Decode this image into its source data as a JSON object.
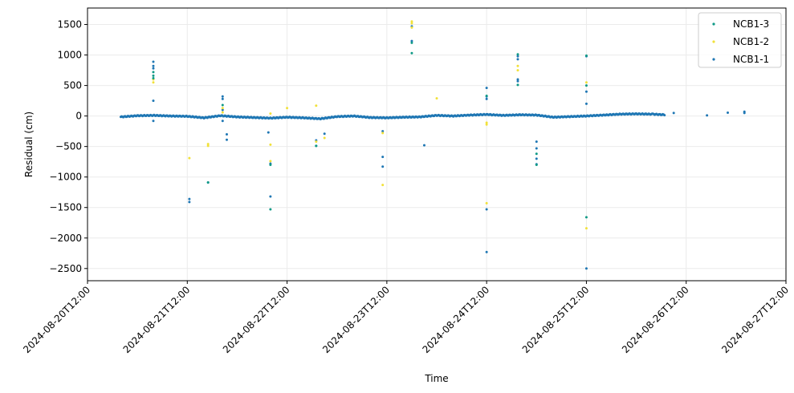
{
  "chart_data": {
    "type": "scatter",
    "title": "",
    "xlabel": "Time",
    "ylabel": "Residual (cm)",
    "x_range": [
      "2024-08-20T12:00",
      "2024-08-27T12:00"
    ],
    "ylim": [
      -2700,
      1770
    ],
    "x_ticks": [
      "2024-08-20T12:00",
      "2024-08-21T12:00",
      "2024-08-22T12:00",
      "2024-08-23T12:00",
      "2024-08-24T12:00",
      "2024-08-25T12:00",
      "2024-08-26T12:00",
      "2024-08-27T12:00"
    ],
    "y_ticks": [
      1500,
      1000,
      500,
      0,
      -500,
      -1000,
      -1500,
      -2000,
      -2500
    ],
    "grid": true,
    "legend_position": "top-right",
    "legend": [
      "NCB1-3",
      "NCB1-2",
      "NCB1-1"
    ],
    "series": [
      {
        "name": "NCB1-1",
        "color": "#1f77b4",
        "baseline": {
          "start": "2024-08-20T20:00",
          "end": "2024-08-26T07:00",
          "points": [
            [
              "2024-08-20T20:00",
              -15
            ],
            [
              "2024-08-21T00:00",
              5
            ],
            [
              "2024-08-21T04:00",
              10
            ],
            [
              "2024-08-21T08:00",
              0
            ],
            [
              "2024-08-21T12:00",
              -5
            ],
            [
              "2024-08-21T16:00",
              -30
            ],
            [
              "2024-08-21T20:00",
              5
            ],
            [
              "2024-08-22T00:00",
              -15
            ],
            [
              "2024-08-22T04:00",
              -25
            ],
            [
              "2024-08-22T08:00",
              -35
            ],
            [
              "2024-08-22T12:00",
              -20
            ],
            [
              "2024-08-22T16:00",
              -30
            ],
            [
              "2024-08-22T20:00",
              -45
            ],
            [
              "2024-08-23T00:00",
              -10
            ],
            [
              "2024-08-23T04:00",
              0
            ],
            [
              "2024-08-23T08:00",
              -25
            ],
            [
              "2024-08-23T12:00",
              -30
            ],
            [
              "2024-08-23T16:00",
              -20
            ],
            [
              "2024-08-23T20:00",
              -15
            ],
            [
              "2024-08-24T00:00",
              10
            ],
            [
              "2024-08-24T04:00",
              0
            ],
            [
              "2024-08-24T08:00",
              15
            ],
            [
              "2024-08-24T12:00",
              25
            ],
            [
              "2024-08-24T16:00",
              10
            ],
            [
              "2024-08-24T20:00",
              20
            ],
            [
              "2024-08-25T00:00",
              15
            ],
            [
              "2024-08-25T04:00",
              -20
            ],
            [
              "2024-08-25T08:00",
              -10
            ],
            [
              "2024-08-25T12:00",
              0
            ],
            [
              "2024-08-25T16:00",
              15
            ],
            [
              "2024-08-25T20:00",
              30
            ],
            [
              "2024-08-26T00:00",
              35
            ],
            [
              "2024-08-26T04:00",
              30
            ],
            [
              "2024-08-26T07:00",
              20
            ]
          ]
        },
        "points": [
          [
            "2024-08-21T03:50",
            890
          ],
          [
            "2024-08-21T03:50",
            820
          ],
          [
            "2024-08-21T03:50",
            780
          ],
          [
            "2024-08-21T03:50",
            250
          ],
          [
            "2024-08-21T03:50",
            -80
          ],
          [
            "2024-08-21T12:30",
            -1360
          ],
          [
            "2024-08-21T12:30",
            -1410
          ],
          [
            "2024-08-21T17:00",
            -1090
          ],
          [
            "2024-08-21T20:30",
            320
          ],
          [
            "2024-08-21T20:30",
            280
          ],
          [
            "2024-08-21T20:30",
            100
          ],
          [
            "2024-08-21T20:30",
            -80
          ],
          [
            "2024-08-21T21:30",
            -390
          ],
          [
            "2024-08-21T21:30",
            -300
          ],
          [
            "2024-08-22T08:00",
            -780
          ],
          [
            "2024-08-22T08:00",
            -1320
          ],
          [
            "2024-08-22T07:30",
            -270
          ],
          [
            "2024-08-22T19:00",
            -400
          ],
          [
            "2024-08-22T19:00",
            -490
          ],
          [
            "2024-08-22T21:00",
            -290
          ],
          [
            "2024-08-23T11:00",
            -670
          ],
          [
            "2024-08-23T11:00",
            -830
          ],
          [
            "2024-08-23T11:00",
            -250
          ],
          [
            "2024-08-23T18:00",
            1470
          ],
          [
            "2024-08-23T18:00",
            1230
          ],
          [
            "2024-08-23T21:00",
            -480
          ],
          [
            "2024-08-24T12:00",
            460
          ],
          [
            "2024-08-24T12:00",
            320
          ],
          [
            "2024-08-24T12:00",
            280
          ],
          [
            "2024-08-24T12:00",
            -1530
          ],
          [
            "2024-08-24T12:00",
            -2230
          ],
          [
            "2024-08-24T19:30",
            980
          ],
          [
            "2024-08-24T19:30",
            930
          ],
          [
            "2024-08-24T19:30",
            600
          ],
          [
            "2024-08-24T19:30",
            570
          ],
          [
            "2024-08-25T00:00",
            -420
          ],
          [
            "2024-08-25T00:00",
            -530
          ],
          [
            "2024-08-25T00:00",
            -700
          ],
          [
            "2024-08-25T00:00",
            -790
          ],
          [
            "2024-08-25T12:00",
            980
          ],
          [
            "2024-08-25T12:00",
            400
          ],
          [
            "2024-08-25T12:00",
            200
          ],
          [
            "2024-08-25T12:00",
            -2500
          ],
          [
            "2024-08-26T09:00",
            50
          ],
          [
            "2024-08-26T17:00",
            10
          ],
          [
            "2024-08-26T22:00",
            55
          ],
          [
            "2024-08-27T02:00",
            50
          ],
          [
            "2024-08-27T02:00",
            70
          ]
        ]
      },
      {
        "name": "NCB1-2",
        "color": "#f1e13a",
        "points": [
          [
            "2024-08-21T03:50",
            550
          ],
          [
            "2024-08-21T03:50",
            600
          ],
          [
            "2024-08-21T12:30",
            -690
          ],
          [
            "2024-08-21T17:00",
            -460
          ],
          [
            "2024-08-21T17:00",
            -490
          ],
          [
            "2024-08-21T20:30",
            130
          ],
          [
            "2024-08-21T20:30",
            60
          ],
          [
            "2024-08-22T08:00",
            -470
          ],
          [
            "2024-08-22T08:00",
            -740
          ],
          [
            "2024-08-22T08:00",
            40
          ],
          [
            "2024-08-22T12:00",
            130
          ],
          [
            "2024-08-22T19:00",
            -420
          ],
          [
            "2024-08-22T19:00",
            170
          ],
          [
            "2024-08-22T21:00",
            -360
          ],
          [
            "2024-08-23T11:00",
            -1130
          ],
          [
            "2024-08-23T11:00",
            -280
          ],
          [
            "2024-08-23T18:00",
            1550
          ],
          [
            "2024-08-23T18:00",
            1520
          ],
          [
            "2024-08-23T18:00",
            1450
          ],
          [
            "2024-08-24T00:00",
            290
          ],
          [
            "2024-08-24T12:00",
            -1430
          ],
          [
            "2024-08-24T12:00",
            -110
          ],
          [
            "2024-08-24T12:00",
            -140
          ],
          [
            "2024-08-24T19:30",
            820
          ],
          [
            "2024-08-24T19:30",
            750
          ],
          [
            "2024-08-25T12:00",
            550
          ],
          [
            "2024-08-25T12:00",
            -1840
          ]
        ]
      },
      {
        "name": "NCB1-3",
        "color": "#0f9a86",
        "points": [
          [
            "2024-08-21T03:50",
            720
          ],
          [
            "2024-08-21T03:50",
            660
          ],
          [
            "2024-08-21T03:50",
            620
          ],
          [
            "2024-08-21T17:00",
            -1090
          ],
          [
            "2024-08-21T20:30",
            180
          ],
          [
            "2024-08-22T08:00",
            -800
          ],
          [
            "2024-08-22T08:00",
            -1530
          ],
          [
            "2024-08-22T19:00",
            -490
          ],
          [
            "2024-08-23T18:00",
            1200
          ],
          [
            "2024-08-23T18:00",
            1030
          ],
          [
            "2024-08-24T12:00",
            330
          ],
          [
            "2024-08-24T19:30",
            1010
          ],
          [
            "2024-08-24T19:30",
            510
          ],
          [
            "2024-08-25T00:00",
            -800
          ],
          [
            "2024-08-25T00:00",
            -620
          ],
          [
            "2024-08-25T12:00",
            990
          ],
          [
            "2024-08-25T12:00",
            500
          ],
          [
            "2024-08-25T12:00",
            -1660
          ]
        ]
      }
    ]
  }
}
